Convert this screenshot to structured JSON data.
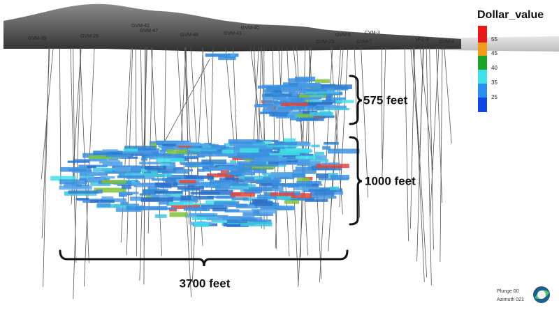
{
  "legend": {
    "title": "Dollar_value",
    "labels": [
      "55",
      "45",
      "40",
      "35",
      "25"
    ]
  },
  "dimensions": {
    "upper_height": "575 feet",
    "lower_height": "1000 feet",
    "width": "3700 feet"
  },
  "view": {
    "plunge": "Plunge 00",
    "azimuth": "Azimuth 021"
  },
  "drill_holes": [
    "GVM-39",
    "GVM-25",
    "GVM-42",
    "GVM-47",
    "GVM-48",
    "GVM-41",
    "GVM-40",
    "GVM-6",
    "CVM-3",
    "GVM-23",
    "GVM-7",
    "VFZ-3",
    "GVM-4"
  ]
}
